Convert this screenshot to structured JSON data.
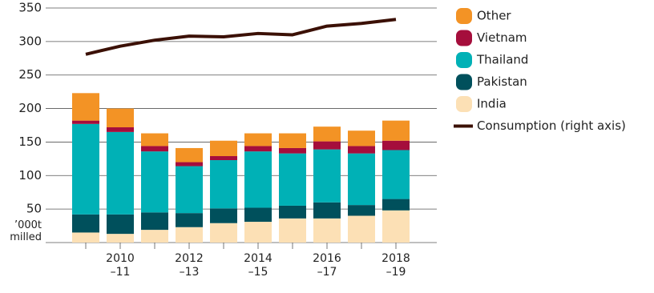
{
  "chart_data": {
    "type": "bar",
    "stacked": true,
    "y_label": "’000t\nmilled",
    "categories": [
      null,
      "2010\n–11",
      null,
      "2012\n–13",
      null,
      "2014\n–15",
      null,
      "2016\n–17",
      null,
      "2018\n–19"
    ],
    "ylim": [
      0,
      350
    ],
    "yticks": [
      50,
      100,
      150,
      200,
      250,
      300,
      350
    ],
    "grid": true,
    "series": [
      {
        "name": "India",
        "color": "#fce0b5",
        "values": [
          15,
          13,
          19,
          23,
          29,
          31,
          36,
          36,
          40,
          48
        ]
      },
      {
        "name": "Pakistan",
        "color": "#00505c",
        "values": [
          27,
          29,
          26,
          21,
          22,
          21,
          19,
          24,
          16,
          17
        ]
      },
      {
        "name": "Thailand",
        "color": "#00b1b6",
        "values": [
          135,
          123,
          91,
          70,
          72,
          84,
          78,
          79,
          77,
          73
        ]
      },
      {
        "name": "Vietnam",
        "color": "#a50e3c",
        "values": [
          5,
          7,
          8,
          6,
          6,
          8,
          8,
          12,
          11,
          14
        ]
      },
      {
        "name": "Other",
        "color": "#f39325",
        "values": [
          41,
          28,
          19,
          21,
          23,
          19,
          22,
          22,
          23,
          30
        ]
      },
      {
        "name": "Consumption (right axis)",
        "type": "line",
        "color": "#3b1005",
        "values": [
          281,
          293,
          302,
          308,
          307,
          312,
          310,
          323,
          327,
          333
        ]
      }
    ]
  }
}
